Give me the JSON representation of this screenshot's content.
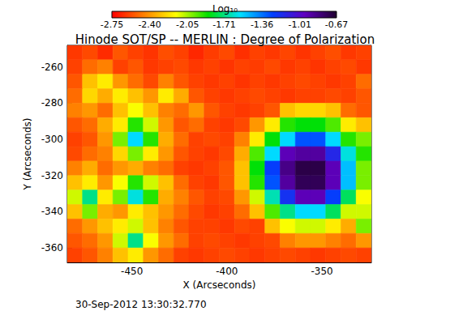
{
  "chart_data": {
    "type": "heatmap",
    "title": "Hinode SOT/SP -- MERLIN : Degree of Polarization",
    "annotation": "30-Sep-2012 13:30:32.770",
    "x_label": "X (Arcseconds)",
    "y_label": "Y (Arcseconds)",
    "xlim": [
      -484,
      -324
    ],
    "xticks": [
      -450,
      -400,
      -350
    ],
    "ylim": [
      -368,
      -248
    ],
    "yticks": [
      -360,
      -340,
      -320,
      -300,
      -280,
      -260
    ],
    "grid": false,
    "x": [
      -480,
      -472,
      -464,
      -456,
      -448,
      -440,
      -432,
      -424,
      -416,
      -408,
      -400,
      -392,
      -384,
      -376,
      -368,
      -360,
      -352,
      -344,
      -336,
      -328
    ],
    "y": [
      -252,
      -260,
      -268,
      -276,
      -284,
      -292,
      -300,
      -308,
      -316,
      -324,
      -332,
      -340,
      -348,
      -356,
      -364
    ],
    "values": [
      [
        -2.62,
        -2.58,
        -2.65,
        -2.55,
        -2.6,
        -2.63,
        -2.57,
        -2.6,
        -2.66,
        -2.61,
        -2.58,
        -2.64,
        -2.6,
        -2.62,
        -2.59,
        -2.63,
        -2.6,
        -2.57,
        -2.62,
        -2.6
      ],
      [
        -2.6,
        -2.5,
        -2.45,
        -2.6,
        -2.55,
        -2.62,
        -2.6,
        -2.58,
        -2.62,
        -2.6,
        -2.63,
        -2.6,
        -2.61,
        -2.58,
        -2.62,
        -2.6,
        -2.63,
        -2.6,
        -2.58,
        -2.62
      ],
      [
        -2.55,
        -2.3,
        -2.2,
        -2.4,
        -2.5,
        -2.58,
        -2.45,
        -2.55,
        -2.6,
        -2.62,
        -2.6,
        -2.63,
        -2.6,
        -2.62,
        -2.6,
        -2.58,
        -2.6,
        -2.62,
        -2.6,
        -2.5
      ],
      [
        -2.5,
        -2.25,
        -2.35,
        -2.2,
        -2.3,
        -2.4,
        -2.2,
        -2.35,
        -2.55,
        -2.6,
        -2.62,
        -2.6,
        -2.58,
        -2.6,
        -2.62,
        -2.6,
        -2.6,
        -2.58,
        -2.6,
        -2.55
      ],
      [
        -2.45,
        -2.4,
        -2.5,
        -2.3,
        -2.15,
        -2.3,
        -2.45,
        -2.5,
        -2.4,
        -2.55,
        -2.6,
        -2.62,
        -2.6,
        -2.55,
        -2.3,
        -2.25,
        -2.25,
        -2.3,
        -2.5,
        -2.55
      ],
      [
        -2.55,
        -2.5,
        -2.35,
        -2.2,
        -1.9,
        -2.1,
        -2.4,
        -2.55,
        -2.5,
        -2.6,
        -2.62,
        -2.58,
        -2.4,
        -2.2,
        -1.9,
        -1.85,
        -1.85,
        -1.95,
        -2.2,
        -2.3
      ],
      [
        -2.6,
        -2.55,
        -2.4,
        -2.0,
        -1.55,
        -1.9,
        -2.35,
        -2.5,
        -2.6,
        -2.58,
        -2.6,
        -2.45,
        -2.2,
        -1.85,
        -1.55,
        -1.3,
        -1.3,
        -1.55,
        -1.9,
        -2.0
      ],
      [
        -2.58,
        -2.5,
        -2.45,
        -2.25,
        -2.0,
        -2.2,
        -2.4,
        -2.55,
        -2.6,
        -2.62,
        -2.58,
        -2.35,
        -1.95,
        -1.55,
        -0.95,
        -0.9,
        -0.9,
        -1.15,
        -1.6,
        -1.9
      ],
      [
        -2.45,
        -2.35,
        -2.5,
        -2.4,
        -2.35,
        -2.45,
        -2.5,
        -2.6,
        -2.62,
        -2.6,
        -2.55,
        -2.3,
        -1.85,
        -1.25,
        -0.85,
        -0.72,
        -0.72,
        -0.95,
        -1.5,
        -2.0
      ],
      [
        -2.3,
        -2.2,
        -2.4,
        -2.15,
        -1.9,
        -2.1,
        -2.3,
        -2.5,
        -2.6,
        -2.62,
        -2.55,
        -2.3,
        -1.9,
        -1.3,
        -0.9,
        -0.75,
        -0.75,
        -0.95,
        -1.5,
        -2.0
      ],
      [
        -2.1,
        -1.7,
        -2.2,
        -2.0,
        -1.6,
        -1.9,
        -2.35,
        -2.45,
        -2.55,
        -2.6,
        -2.58,
        -2.4,
        -2.1,
        -1.65,
        -1.2,
        -0.95,
        -0.95,
        -1.25,
        -1.75,
        -2.15
      ],
      [
        -2.3,
        -2.0,
        -2.35,
        -2.4,
        -2.2,
        -2.3,
        -2.4,
        -2.5,
        -2.58,
        -2.62,
        -2.6,
        -2.5,
        -2.3,
        -1.95,
        -1.7,
        -1.55,
        -1.55,
        -1.75,
        -2.1,
        -2.1
      ],
      [
        -2.5,
        -2.4,
        -2.3,
        -2.2,
        -2.1,
        -2.3,
        -2.45,
        -2.55,
        -2.6,
        -2.6,
        -2.62,
        -2.58,
        -2.6,
        -2.3,
        -2.15,
        -2.1,
        -2.1,
        -2.2,
        -2.35,
        -2.0
      ],
      [
        -2.55,
        -2.5,
        -2.4,
        -2.1,
        -1.7,
        -2.15,
        -2.4,
        -2.5,
        -2.6,
        -2.58,
        -2.6,
        -2.62,
        -2.6,
        -2.58,
        -2.45,
        -2.4,
        -2.4,
        -2.45,
        -2.5,
        -2.4
      ],
      [
        -2.6,
        -2.55,
        -2.45,
        -2.3,
        -2.2,
        -2.4,
        -2.5,
        -2.6,
        -2.62,
        -2.6,
        -2.58,
        -2.6,
        -2.62,
        -2.6,
        -2.58,
        -2.6,
        -2.62,
        -2.6,
        -2.58,
        -2.6
      ]
    ],
    "colors": [
      "#ff0000",
      "#ff8000",
      "#ffff00",
      "#00e000",
      "#00e0ff",
      "#0040ff",
      "#6000c0",
      "#200030"
    ],
    "colorbar": {
      "label": "Log₁₀",
      "range": [
        -2.75,
        -0.67
      ],
      "ticks": [
        -2.75,
        {
          "value": -2.4,
          "label": "-2.40"
        },
        -2.05,
        -1.71,
        -1.36,
        -1.01,
        -0.67
      ]
    }
  }
}
